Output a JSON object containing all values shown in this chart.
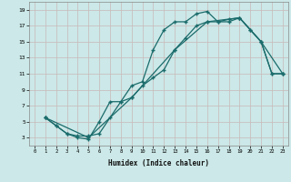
{
  "xlabel": "Humidex (Indice chaleur)",
  "bg_color": "#cce8e8",
  "grid_color": "#c8b8b8",
  "line_color": "#1a6b6b",
  "xlim": [
    -0.5,
    23.5
  ],
  "ylim": [
    2,
    20
  ],
  "xticks": [
    0,
    1,
    2,
    3,
    4,
    5,
    6,
    7,
    8,
    9,
    10,
    11,
    12,
    13,
    14,
    15,
    16,
    17,
    18,
    19,
    20,
    21,
    22,
    23
  ],
  "yticks": [
    3,
    5,
    7,
    9,
    11,
    13,
    15,
    17,
    19
  ],
  "series1_x": [
    1,
    2,
    3,
    4,
    5,
    6,
    7,
    8,
    9,
    10,
    11,
    12,
    13,
    14,
    15,
    16,
    17,
    18,
    19,
    20,
    21,
    22,
    23
  ],
  "series1_y": [
    5.5,
    4.5,
    3.5,
    3.0,
    2.8,
    5.0,
    7.5,
    7.5,
    9.5,
    10.0,
    14.0,
    16.5,
    17.5,
    17.5,
    18.5,
    18.8,
    17.5,
    17.8,
    18.0,
    16.5,
    15.0,
    11.0,
    11.0
  ],
  "series2_x": [
    1,
    2,
    3,
    4,
    5,
    6,
    7,
    8,
    9,
    10,
    11,
    12,
    13,
    14,
    15,
    16,
    17,
    18,
    19,
    20,
    21,
    22,
    23
  ],
  "series2_y": [
    5.5,
    4.5,
    3.5,
    3.2,
    3.2,
    3.5,
    5.5,
    7.5,
    8.0,
    9.5,
    10.5,
    11.5,
    14.0,
    15.5,
    17.0,
    17.5,
    17.5,
    17.5,
    18.0,
    16.5,
    15.0,
    11.0,
    11.0
  ],
  "series3_x": [
    1,
    5,
    9,
    13,
    16,
    19,
    21,
    23
  ],
  "series3_y": [
    5.5,
    3.0,
    8.0,
    14.0,
    17.5,
    18.0,
    15.0,
    11.0
  ]
}
